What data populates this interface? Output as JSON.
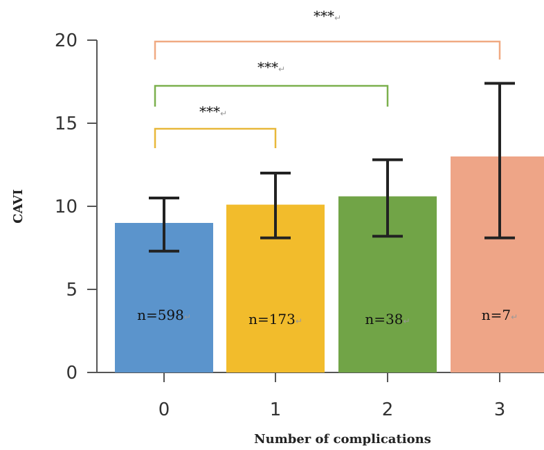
{
  "chart_data": {
    "type": "bar",
    "categories": [
      "0",
      "1",
      "2",
      "3"
    ],
    "values": [
      9.0,
      10.1,
      10.6,
      13.0
    ],
    "error_low": [
      7.3,
      8.1,
      8.2,
      8.1
    ],
    "error_high": [
      10.5,
      12.0,
      12.8,
      17.4
    ],
    "sample_labels": [
      "n=598",
      "n=173",
      "n=38",
      "n=7"
    ],
    "bar_colors": [
      "#5b94cc",
      "#f2bc2c",
      "#71a447",
      "#eea587"
    ],
    "xlabel": "Number of complications",
    "ylabel": "CAVI",
    "ylim": [
      0,
      20
    ],
    "yticks": [
      "0",
      "5",
      "10",
      "15",
      "20"
    ],
    "grid": false,
    "significance": [
      {
        "from": "0",
        "to": "1",
        "text": "***",
        "color": "#e8b83a"
      },
      {
        "from": "0",
        "to": "2",
        "text": "***",
        "color": "#7bb04d"
      },
      {
        "from": "0",
        "to": "3",
        "text": "***",
        "color": "#f0aa82"
      }
    ],
    "return_mark": "↵"
  }
}
